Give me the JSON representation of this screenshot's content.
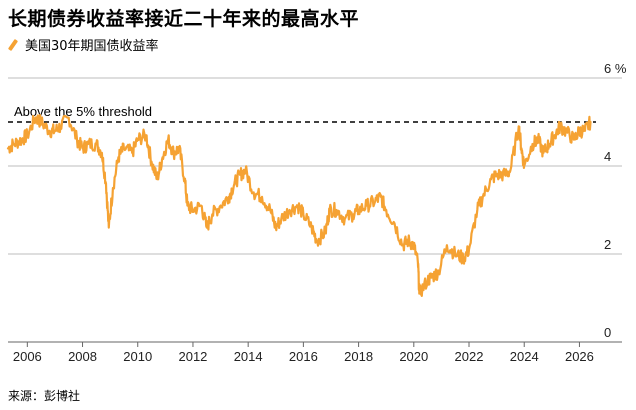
{
  "header": {
    "title": "长期债券收益率接近二十年来的最高水平",
    "legend_label": "美国30年期国债收益率"
  },
  "footer": {
    "source": "来源：彭博社"
  },
  "colors": {
    "series": "#f5a233",
    "grid": "#bdbdbd",
    "axis": "#666666",
    "threshold": "#000000"
  },
  "chart_data": {
    "type": "line",
    "title": "长期债券收益率接近二十年来的最高水平",
    "xlabel": "",
    "ylabel": "",
    "xlim": [
      2005.3,
      2026.6
    ],
    "ylim": [
      0,
      6
    ],
    "x_ticks": [
      2006,
      2008,
      2010,
      2012,
      2014,
      2016,
      2018,
      2020,
      2022,
      2024,
      2026
    ],
    "x_tick_labels": [
      "2006",
      "2008",
      "2010",
      "2012",
      "2014",
      "2016",
      "2018",
      "2020",
      "2022",
      "2024",
      "2026"
    ],
    "y_ticks": [
      0,
      2,
      4,
      6
    ],
    "y_tick_labels": [
      "0",
      "2",
      "4",
      "6 %"
    ],
    "grid": "horizontal",
    "series": [
      {
        "name": "美国30年期国债收益率",
        "color": "#f5a233",
        "x": [
          2005.3,
          2005.5,
          2005.8,
          2006.0,
          2006.3,
          2006.5,
          2006.8,
          2007.0,
          2007.2,
          2007.5,
          2007.8,
          2008.0,
          2008.2,
          2008.5,
          2008.7,
          2008.85,
          2008.95,
          2009.1,
          2009.3,
          2009.5,
          2009.8,
          2010.0,
          2010.3,
          2010.5,
          2010.7,
          2010.9,
          2011.1,
          2011.3,
          2011.5,
          2011.7,
          2011.8,
          2012.0,
          2012.3,
          2012.5,
          2012.7,
          2013.0,
          2013.3,
          2013.5,
          2013.7,
          2013.9,
          2014.2,
          2014.5,
          2014.8,
          2015.0,
          2015.2,
          2015.5,
          2015.8,
          2016.0,
          2016.3,
          2016.5,
          2016.8,
          2016.95,
          2017.2,
          2017.5,
          2017.8,
          2018.0,
          2018.3,
          2018.6,
          2018.8,
          2019.0,
          2019.3,
          2019.6,
          2019.8,
          2020.0,
          2020.15,
          2020.2,
          2020.5,
          2020.7,
          2020.9,
          2021.2,
          2021.5,
          2021.8,
          2022.0,
          2022.3,
          2022.5,
          2022.8,
          2023.0,
          2023.3,
          2023.5,
          2023.8,
          2023.9,
          2024.0,
          2024.3,
          2024.5,
          2024.7,
          2024.9,
          2025.1,
          2025.3,
          2025.5,
          2025.8,
          2026.0,
          2026.2,
          2026.4
        ],
        "values": [
          4.4,
          4.5,
          4.6,
          4.7,
          5.1,
          5.0,
          4.8,
          4.8,
          4.9,
          5.1,
          4.6,
          4.4,
          4.5,
          4.5,
          4.3,
          3.6,
          2.6,
          3.5,
          4.2,
          4.4,
          4.3,
          4.6,
          4.7,
          4.1,
          3.7,
          4.2,
          4.6,
          4.3,
          4.4,
          3.7,
          3.1,
          3.0,
          3.1,
          2.6,
          2.9,
          3.1,
          3.3,
          3.6,
          3.8,
          3.9,
          3.4,
          3.3,
          3.0,
          2.6,
          2.8,
          3.0,
          3.1,
          2.9,
          2.6,
          2.3,
          2.5,
          3.0,
          3.0,
          2.8,
          2.9,
          3.0,
          3.1,
          3.2,
          3.3,
          3.0,
          2.7,
          2.2,
          2.3,
          2.2,
          1.8,
          1.1,
          1.4,
          1.5,
          1.6,
          2.2,
          2.0,
          1.9,
          2.1,
          3.0,
          3.3,
          3.7,
          3.8,
          3.8,
          3.9,
          4.9,
          4.4,
          4.0,
          4.5,
          4.6,
          4.3,
          4.5,
          4.7,
          4.9,
          4.8,
          4.6,
          4.8,
          4.8,
          5.0
        ]
      }
    ],
    "annotations": [
      {
        "type": "hline",
        "y": 5,
        "label": "Above the 5% threshold",
        "style": "dashed"
      }
    ]
  }
}
